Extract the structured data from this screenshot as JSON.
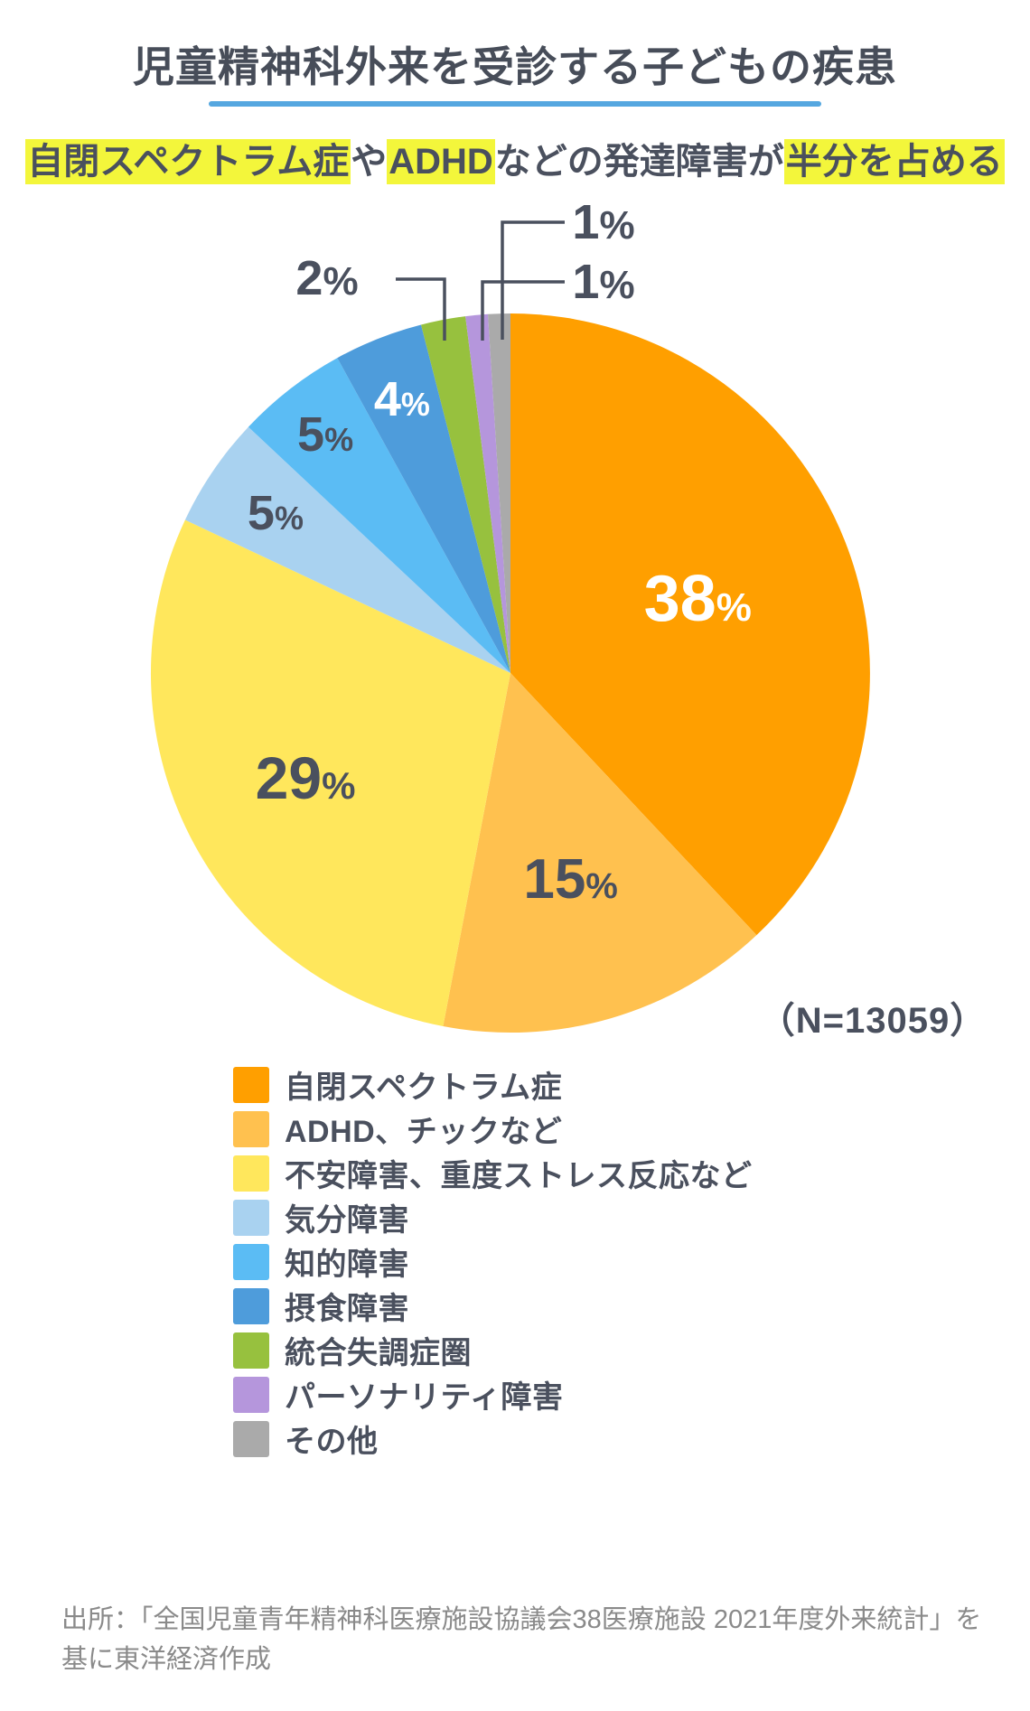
{
  "header": {
    "title": "児童精神科外来を受診する子どもの疾患",
    "underline_color": "#55A7E0",
    "subtitle_segments": [
      {
        "text": "自閉スペクトラム症",
        "highlight": true
      },
      {
        "text": "や",
        "highlight": false
      },
      {
        "text": "ADHD",
        "highlight": true
      },
      {
        "text": "などの発達障害が",
        "highlight": false
      },
      {
        "text": "半分を占める",
        "highlight": true
      }
    ],
    "highlight_color": "#F3F63B",
    "text_color": "#4A505E"
  },
  "chart_data": {
    "type": "pie",
    "title": "児童精神科外来を受診する子どもの疾患",
    "sample_size_label": "（N=13059）",
    "start_angle_deg": 0,
    "direction": "clockwise",
    "legend_position": "bottom-left",
    "slices": [
      {
        "label": "自閉スペクトラム症",
        "value_pct": 38,
        "color": "#FF9F00",
        "pct_text": "38%",
        "pct_text_color": "#FFFFFF",
        "pct_placement": "inside"
      },
      {
        "label": "ADHD、チックなど",
        "value_pct": 15,
        "color": "#FFC14F",
        "pct_text": "15%",
        "pct_text_color": "#4A505E",
        "pct_placement": "inside"
      },
      {
        "label": "不安障害、重度ストレス反応など",
        "value_pct": 29,
        "color": "#FFE75C",
        "pct_text": "29%",
        "pct_text_color": "#4A505E",
        "pct_placement": "inside"
      },
      {
        "label": "気分障害",
        "value_pct": 5,
        "color": "#A9D2F0",
        "pct_text": "5%",
        "pct_text_color": "#4A505E",
        "pct_placement": "inside"
      },
      {
        "label": "知的障害",
        "value_pct": 5,
        "color": "#5BBCF4",
        "pct_text": "5%",
        "pct_text_color": "#4A505E",
        "pct_placement": "inside"
      },
      {
        "label": "摂食障害",
        "value_pct": 4,
        "color": "#4E9CDB",
        "pct_text": "4%",
        "pct_text_color": "#FFFFFF",
        "pct_placement": "inside"
      },
      {
        "label": "統合失調症圏",
        "value_pct": 2,
        "color": "#97C13E",
        "pct_text": "2%",
        "pct_text_color": "#4A505E",
        "pct_placement": "outside-callout"
      },
      {
        "label": "パーソナリティ障害",
        "value_pct": 1,
        "color": "#B596DC",
        "pct_text": "1%",
        "pct_text_color": "#4A505E",
        "pct_placement": "outside-callout"
      },
      {
        "label": "その他",
        "value_pct": 1,
        "color": "#AAAAAA",
        "pct_text": "1%",
        "pct_text_color": "#4A505E",
        "pct_placement": "outside-callout"
      }
    ]
  },
  "source": {
    "line1": "出所：「全国児童青年精神科医療施設協議会38医療施設 2021年度外来統計」を",
    "line2": "基に東洋経済作成",
    "color": "#8A8A8A"
  }
}
